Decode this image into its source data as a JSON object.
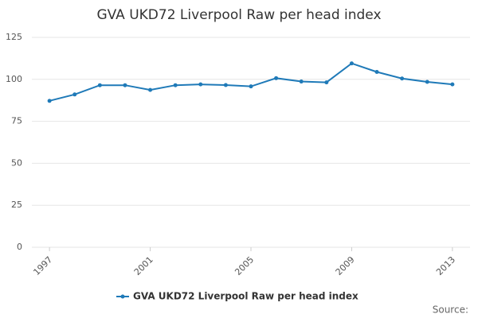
{
  "chart_data": {
    "type": "line",
    "title": "GVA UKD72 Liverpool Raw per head index",
    "x": [
      1997,
      1998,
      1999,
      2000,
      2001,
      2002,
      2003,
      2004,
      2005,
      2006,
      2007,
      2008,
      2009,
      2010,
      2011,
      2012,
      2013
    ],
    "series": [
      {
        "name": "GVA UKD72 Liverpool Raw per head index",
        "color": "#1f7ab8",
        "values": [
          87.2,
          91,
          96.5,
          96.5,
          93.7,
          96.5,
          97,
          96.6,
          95.8,
          100.7,
          98.7,
          98.2,
          109.5,
          104.4,
          100.5,
          98.5,
          97
        ]
      }
    ],
    "xlim": [
      1996.3,
      2013.7
    ],
    "xticks": [
      1997,
      2001,
      2005,
      2009,
      2013
    ],
    "ylim": [
      0,
      125
    ],
    "yticks": [
      0,
      25,
      50,
      75,
      100,
      125
    ],
    "grid": true,
    "source": "Source:"
  }
}
